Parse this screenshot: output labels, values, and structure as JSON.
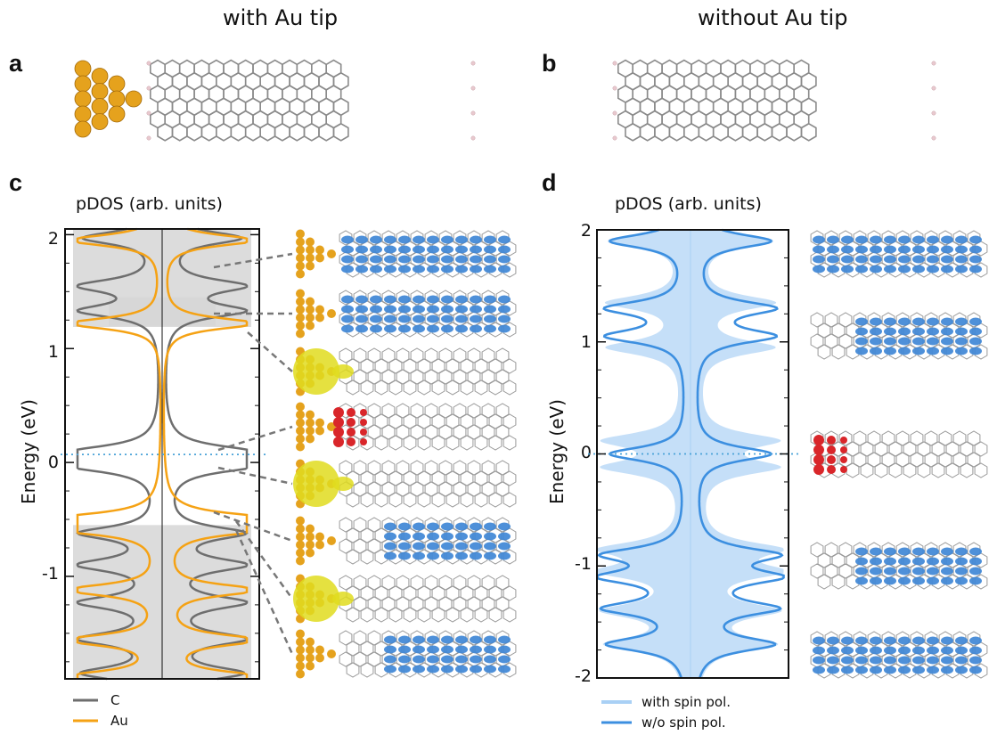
{
  "headers": {
    "left": "with Au tip",
    "right": "without Au tip"
  },
  "panels": {
    "a": "a",
    "b": "b",
    "c": "c",
    "d": "d"
  },
  "panel_c": {
    "title": "pDOS (arb. units)",
    "ylabel": "Energy (eV)",
    "yticks": [
      "2",
      "1",
      "0",
      "-1"
    ],
    "legend": [
      {
        "label": "C",
        "color": "#6e6e6e"
      },
      {
        "label": "Au",
        "color": "#f5a214"
      }
    ]
  },
  "panel_d": {
    "title": "pDOS (arb. units)",
    "ylabel": "Energy (eV)",
    "yticks": [
      "2",
      "1",
      "0",
      "-1",
      "-2"
    ],
    "legend": [
      {
        "label": "with spin pol.",
        "color": "#a9d0f5"
      },
      {
        "label": "w/o spin pol.",
        "color": "#3c8fe0"
      }
    ]
  },
  "colors": {
    "carbon": "#8a8a8a",
    "hydrogen": "#e9c9cf",
    "gold": "#e5a21d",
    "orbital_blue": "#3f87d6",
    "orbital_red": "#d9262a",
    "orbital_yellow": "#e1dc1e",
    "fermi": "#4aa3d8"
  },
  "chart_data": [
    {
      "panel": "c",
      "type": "line",
      "title": "pDOS (arb. units)",
      "ylabel": "Energy (eV)",
      "ylim": [
        -1.9,
        2.05
      ],
      "fermi_level": 0.07,
      "series": [
        {
          "name": "C"
        },
        {
          "name": "Au"
        }
      ]
    },
    {
      "panel": "d",
      "type": "area",
      "title": "pDOS (arb. units)",
      "ylabel": "Energy (eV)",
      "ylim": [
        -2,
        2
      ],
      "fermi_level": 0,
      "series": [
        {
          "name": "with spin pol."
        },
        {
          "name": "w/o spin pol."
        }
      ]
    }
  ]
}
